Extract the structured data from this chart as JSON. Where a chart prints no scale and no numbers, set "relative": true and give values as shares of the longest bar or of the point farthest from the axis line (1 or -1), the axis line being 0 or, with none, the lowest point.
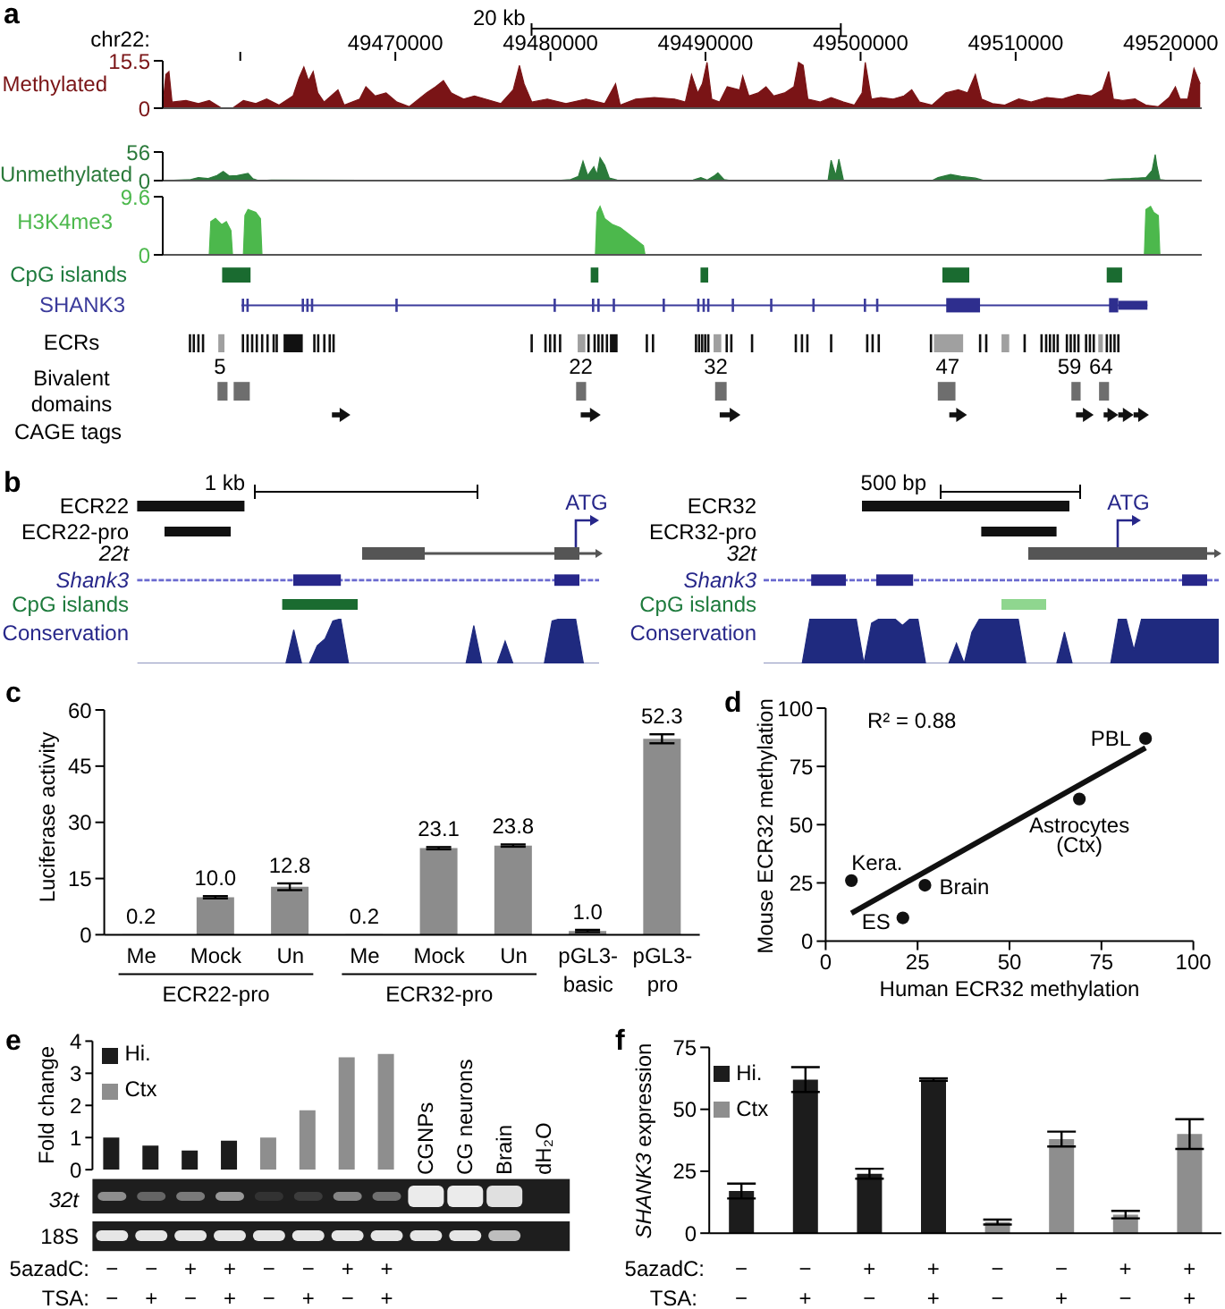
{
  "chart_data": [
    {
      "type": "area",
      "title": "a",
      "xlabel": "chr22:",
      "ylabel": "Methylated",
      "color": "#7a1416",
      "x": [
        49455000,
        49455200,
        49455400,
        49455600,
        49456500,
        49457300,
        49458000,
        49458800,
        49459500,
        49460200,
        49461000,
        49461700,
        49462500,
        49463400,
        49463800,
        49464100,
        49464400,
        49464700,
        49465000,
        49465400,
        49466300,
        49466700,
        49467700,
        49468100,
        49468700,
        49469400,
        49470100,
        49470900,
        49472000,
        49472600,
        49473100,
        49473600,
        49474400,
        49475100,
        49475800,
        49476800,
        49477600,
        49478000,
        49478300,
        49478800,
        49479800,
        49481000,
        49482300,
        49483500,
        49484200,
        49484500,
        49485500,
        49486700,
        49488000,
        49488700,
        49489100,
        49489500,
        49489800,
        49490100,
        49490400,
        49490900,
        49491400,
        49492200,
        49492400,
        49492800,
        49493400,
        49493900,
        49494400,
        49495100,
        49495700,
        49496000,
        49496300,
        49496600,
        49497400,
        49498100,
        49498900,
        49499600,
        49500100,
        49500300,
        49500700,
        49501300,
        49502100,
        49502800,
        49503300,
        49503800,
        49504600,
        49505500,
        49506300,
        49506900,
        49507400,
        49507800,
        49508500,
        49509300,
        49510200,
        49511000,
        49512000,
        49513000,
        49514000,
        49514900,
        49515600,
        49516000,
        49516300,
        49516900,
        49517700,
        49518400,
        49519200,
        49519900,
        49520300,
        49520600,
        49521100,
        49521500,
        49521900
      ],
      "values": [
        0.5,
        11,
        12,
        2,
        2.5,
        1.5,
        2.5,
        0,
        0,
        2.5,
        1.5,
        3,
        1,
        4,
        10,
        13.5,
        9,
        12,
        5,
        2,
        6,
        1,
        3,
        7,
        4,
        5,
        2,
        0.5,
        5,
        7,
        9,
        5,
        3,
        4,
        3,
        1.5,
        6,
        14,
        8,
        2,
        3,
        1.5,
        3,
        1.5,
        8,
        1,
        3,
        3.5,
        3,
        2,
        11,
        5,
        8,
        15,
        3,
        2,
        7,
        6,
        10.5,
        4,
        5,
        7,
        4,
        5,
        7,
        15,
        14,
        3,
        2,
        3.5,
        2,
        1,
        5,
        15,
        3,
        3.5,
        3,
        4,
        6,
        2,
        1,
        5,
        6,
        5,
        11,
        3,
        1.5,
        1,
        3,
        2,
        3.5,
        3,
        4.5,
        4,
        6,
        12,
        3,
        2.5,
        3,
        1,
        0.5,
        3.5,
        7,
        3,
        3,
        13,
        8
      ],
      "xlim": [
        49455000,
        49522000
      ],
      "xticks": [
        {
          "value": 49460000,
          "label": null
        },
        49470000,
        49480000,
        49490000,
        49500000,
        49510000,
        49520000
      ],
      "ylim": [
        0,
        15.5
      ],
      "yticks": [
        0,
        15.5
      ],
      "annotations": [
        "20 kb"
      ]
    },
    {
      "type": "area",
      "ylabel": "Unmethylated",
      "color": "#2b7a3b",
      "x": [
        49455000,
        49456800,
        49457300,
        49457900,
        49458500,
        49458900,
        49459300,
        49459800,
        49460500,
        49460800,
        49461200,
        49462000,
        49480300,
        49481300,
        49481800,
        49482100,
        49482400,
        49482800,
        49483000,
        49483200,
        49483500,
        49483800,
        49484300,
        49485700,
        49489200,
        49489700,
        49490100,
        49490600,
        49490800,
        49491200,
        49491700,
        49497900,
        49498100,
        49498400,
        49498600,
        49498900,
        49504600,
        49505000,
        49505800,
        49506500,
        49507400,
        49508000,
        49515400,
        49516200,
        49517400,
        49518400,
        49518800,
        49519000,
        49519100,
        49519300,
        49519900,
        49522000
      ],
      "values": [
        0,
        2,
        6,
        4,
        10,
        18,
        9,
        10,
        14,
        4,
        0,
        1,
        0,
        2,
        8,
        38,
        10,
        27,
        12,
        45,
        30,
        5,
        1,
        0,
        1,
        6,
        1,
        10,
        15,
        2,
        0,
        0,
        40,
        10,
        42,
        0,
        0,
        6,
        12,
        8,
        5,
        0,
        0,
        3,
        4,
        6,
        20,
        51,
        30,
        2,
        0,
        0
      ],
      "xlim": [
        49455000,
        49522000
      ],
      "ylim": [
        0,
        56
      ],
      "yticks": [
        0,
        56
      ],
      "tick_labels": "y"
    },
    {
      "type": "area",
      "ylabel": "H3K4me3",
      "color": "#4cb84c",
      "x": [
        49455000,
        49458000,
        49458100,
        49458400,
        49458800,
        49459100,
        49459400,
        49459500,
        49460200,
        49460300,
        49460500,
        49461000,
        49461300,
        49461400,
        49482900,
        49483000,
        49483200,
        49483500,
        49484000,
        49484500,
        49485000,
        49485500,
        49486000,
        49486100,
        49518300,
        49518400,
        49518700,
        49518900,
        49519200,
        49519300,
        49522000
      ],
      "values": [
        0,
        0,
        5.5,
        6,
        5,
        5.5,
        4,
        0,
        0,
        6.5,
        7.5,
        7,
        6,
        0,
        0,
        7,
        8,
        6,
        5,
        4.5,
        3.5,
        2.5,
        1.5,
        0,
        0,
        7.5,
        8,
        7,
        6.5,
        0,
        0
      ],
      "xlim": [
        49455000,
        49522000
      ],
      "ylim": [
        0,
        9.6
      ],
      "yticks": [
        0,
        9.6
      ],
      "tick_labels": "y"
    },
    {
      "type": "other",
      "annotations": [
        "CpG islands",
        "SHANK3",
        "ECRs",
        "5",
        "22",
        "32",
        "47",
        "59",
        "64",
        "Bivalent domains",
        "CAGE tags"
      ]
    },
    {
      "type": "area",
      "title": "b",
      "relative": true,
      "ylabel": "Conservation",
      "color": "#1f2a7f",
      "categories": [
        null,
        null,
        null,
        null,
        null,
        null,
        null,
        null,
        null,
        null,
        null,
        null,
        null,
        null,
        null,
        null,
        null,
        null,
        null,
        null,
        null,
        null,
        null,
        null,
        null,
        null,
        null,
        null,
        null,
        null,
        null,
        null,
        null,
        null,
        null,
        null,
        null,
        null,
        null,
        null,
        null,
        null,
        null,
        null,
        null,
        null,
        null,
        null,
        null,
        null,
        null,
        null,
        null,
        null,
        null,
        null,
        null,
        null,
        null,
        null
      ],
      "values": [
        0,
        0,
        0,
        0,
        0,
        0,
        0,
        0,
        0,
        0,
        0,
        0,
        0,
        0,
        0,
        0,
        0,
        0,
        0,
        0,
        0.75,
        0,
        0,
        0.4,
        0.55,
        0.95,
        1,
        0,
        0,
        0,
        0,
        0,
        0,
        0,
        0,
        0,
        0,
        0,
        0,
        0,
        0,
        0,
        0,
        0.85,
        0,
        0,
        0,
        0.5,
        0,
        0,
        0,
        0,
        0,
        0.95,
        1,
        1,
        1,
        0,
        0,
        0
      ],
      "annotations": [
        "1 kb",
        "ECR22",
        "ECR22-pro",
        "22t",
        "Shank3",
        "CpG islands",
        "ATG"
      ]
    },
    {
      "type": "area",
      "relative": true,
      "ylabel": "Conservation",
      "color": "#1f2a7f",
      "categories": [
        null,
        null,
        null,
        null,
        null,
        null,
        null,
        null,
        null,
        null,
        null,
        null,
        null,
        null,
        null,
        null,
        null,
        null,
        null,
        null,
        null,
        null,
        null,
        null,
        null,
        null,
        null,
        null,
        null,
        null,
        null,
        null,
        null,
        null,
        null,
        null,
        null,
        null,
        null,
        null,
        null,
        null,
        null,
        null,
        null,
        null,
        null,
        null,
        null,
        null,
        null,
        null,
        null,
        null,
        null,
        null,
        null,
        null,
        null,
        null
      ],
      "values": [
        0,
        0,
        0,
        0,
        0,
        0,
        1,
        1,
        1,
        1,
        1,
        1,
        1,
        0,
        0.9,
        1,
        1,
        1,
        0.85,
        1,
        1,
        0,
        0,
        0,
        0,
        0.45,
        0,
        0.7,
        1,
        1,
        1,
        1,
        1,
        1,
        0,
        0,
        0,
        0,
        0,
        0.7,
        0,
        0,
        0,
        0,
        0,
        0,
        1,
        1,
        0.3,
        1,
        1,
        1,
        1,
        1,
        1,
        1,
        1,
        1,
        1,
        1
      ],
      "annotations": [
        "500 bp",
        "ECR32",
        "ECR32-pro",
        "32t",
        "Shank3",
        "CpG islands",
        "ATG"
      ]
    },
    {
      "type": "bar",
      "title": "c",
      "categories": [
        "Me",
        "Mock",
        "Un",
        "Me",
        "Mock",
        "Un",
        "pGL3-basic",
        "pGL3-pro"
      ],
      "values": [
        0.2,
        10.0,
        12.8,
        0.2,
        23.1,
        23.8,
        1.0,
        52.3
      ],
      "colors": [
        "#d9d9d9",
        "#8c8c8c",
        "#8c8c8c",
        "#d9d9d9",
        "#8c8c8c",
        "#8c8c8c",
        "#8c8c8c",
        "#8c8c8c"
      ],
      "errors": [
        null,
        0.3,
        0.9,
        null,
        0.3,
        0.3,
        0.3,
        1.2
      ],
      "value_labels": [
        "0.2",
        "10.0",
        "12.8",
        "0.2",
        "23.1",
        "23.8",
        "1.0",
        "52.3"
      ],
      "ylabel": "Luciferase activity",
      "ylim": [
        0,
        60
      ],
      "yticks": [
        0,
        15,
        30,
        45,
        60
      ],
      "annotations": [
        "ECR22-pro",
        "ECR32-pro"
      ]
    },
    {
      "type": "scatter",
      "title": "d",
      "series": [
        {
          "type": "scatter",
          "marker": "circle",
          "x": [
            7,
            21,
            27,
            69,
            87
          ],
          "values": [
            26,
            10,
            24,
            61,
            87
          ],
          "color": "#111111"
        },
        {
          "type": "line",
          "x": [
            7,
            87
          ],
          "values": [
            12,
            83
          ],
          "color": "#111111"
        }
      ],
      "xlabel": "Human ECR32 methylation",
      "ylabel": "Mouse ECR32 methylation",
      "xlim": [
        0,
        100
      ],
      "xticks": [
        0,
        25,
        50,
        75,
        100
      ],
      "ylim": [
        0,
        100
      ],
      "yticks": [
        0,
        25,
        50,
        75,
        100
      ],
      "annotations": [
        "R² = 0.88",
        {
          "text": "Kera.",
          "x": 7,
          "y": 26
        },
        {
          "text": "ES",
          "x": 21,
          "y": 10
        },
        {
          "text": "Brain",
          "x": 27,
          "y": 24
        },
        {
          "text": "Astrocytes (Ctx)",
          "x": 69,
          "y": 61
        },
        {
          "text": "PBL",
          "x": 87,
          "y": 87
        }
      ]
    },
    {
      "type": "bar",
      "title": "e",
      "categories": [
        "−\n−",
        "−\n+",
        "+\n−",
        "+\n+",
        "−\n−",
        "−\n+",
        "+\n−",
        "+\n+",
        "CGNPs",
        "CG neurons",
        "Brain",
        "dH₂O"
      ],
      "series": [
        {
          "name": "Hi.",
          "color": "#1c1c1c",
          "values": [
            1.0,
            0.75,
            0.6,
            0.9,
            null,
            null,
            null,
            null,
            null,
            null,
            null,
            null
          ]
        },
        {
          "name": "Ctx",
          "color": "#8e8e8e",
          "values": [
            null,
            null,
            null,
            null,
            1.0,
            1.85,
            3.5,
            3.6,
            null,
            null,
            null,
            null
          ]
        }
      ],
      "ylabel": "Fold change",
      "ylim": [
        0,
        4
      ],
      "yticks": [
        0,
        1,
        2,
        3,
        4
      ],
      "legend": "top left",
      "annotations": [
        "32t",
        "18S",
        "5azadC:",
        "TSA:"
      ]
    },
    {
      "type": "bar",
      "title": "f",
      "categories": [
        "−\n−",
        "−\n+",
        "+\n−",
        "+\n+",
        "−\n−",
        "−\n+",
        "+\n−",
        "+\n+"
      ],
      "series": [
        {
          "name": "Hi.",
          "color": "#1c1c1c",
          "values": [
            17,
            62,
            24,
            62,
            null,
            null,
            null,
            null
          ],
          "errors": [
            3,
            5,
            2,
            0.5,
            null,
            null,
            null,
            null
          ]
        },
        {
          "name": "Ctx",
          "color": "#8e8e8e",
          "values": [
            null,
            null,
            null,
            null,
            4.5,
            38,
            7.5,
            40
          ],
          "errors": [
            null,
            null,
            null,
            null,
            1,
            3,
            1.5,
            6
          ]
        }
      ],
      "ylabel": "SHANK3 expression",
      "ylim": [
        0,
        75
      ],
      "yticks": [
        0,
        25,
        50,
        75
      ],
      "legend": "top left",
      "annotations": [
        "5azadC:",
        "TSA:"
      ]
    }
  ]
}
